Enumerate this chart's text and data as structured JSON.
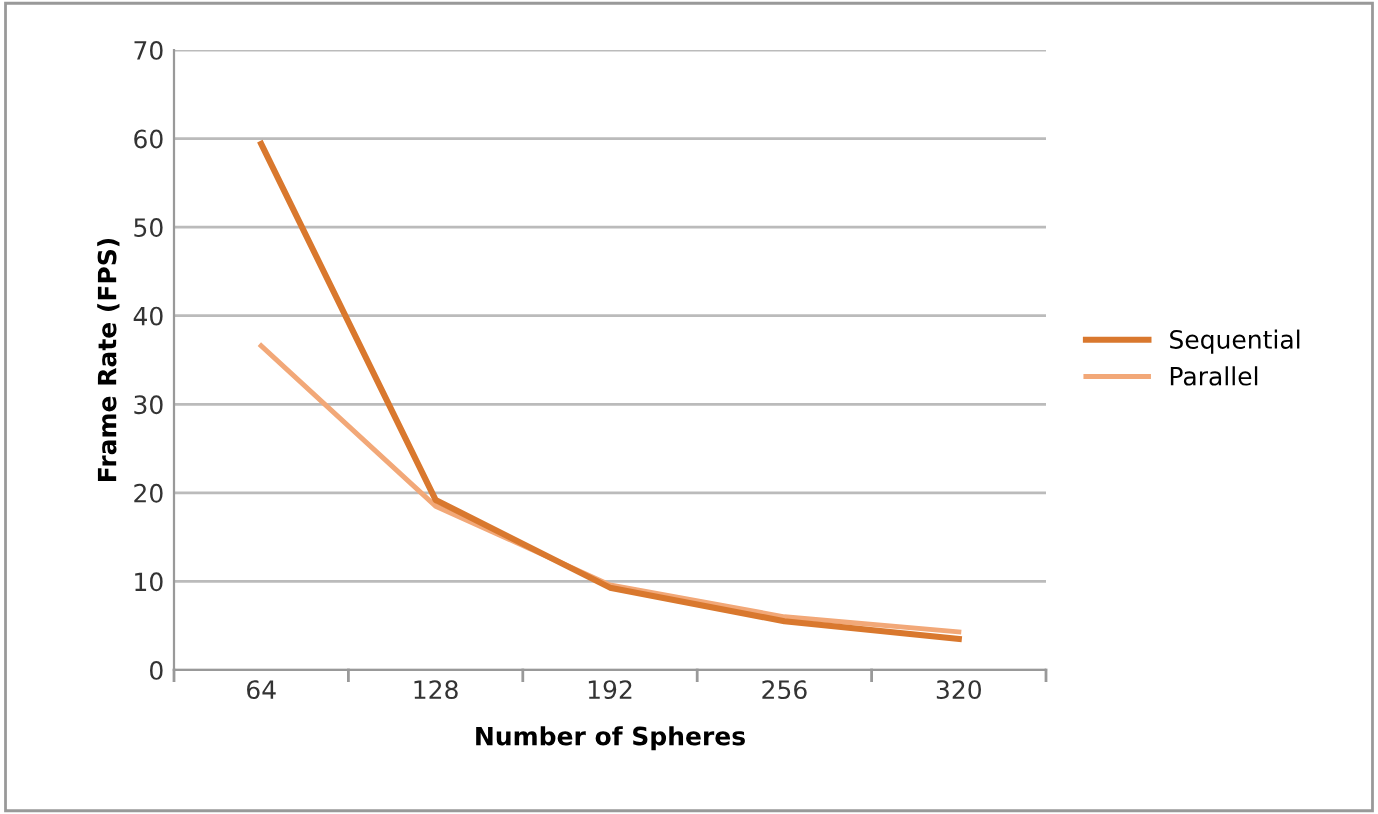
{
  "chart_data": {
    "type": "line",
    "xlabel": "Number of Spheres",
    "ylabel": "Frame Rate (FPS)",
    "categories": [
      "64",
      "128",
      "192",
      "256",
      "320"
    ],
    "series": [
      {
        "name": "Sequential",
        "color": "#d9782e",
        "values": [
          59.4,
          19.2,
          9.3,
          5.5,
          3.5
        ]
      },
      {
        "name": "Parallel",
        "color": "#f2a878",
        "values": [
          36.6,
          18.5,
          9.6,
          6.0,
          4.3
        ]
      }
    ],
    "ylim": [
      0,
      70
    ],
    "yticks": [
      0,
      10,
      20,
      30,
      40,
      50,
      60,
      70
    ],
    "grid": "y",
    "legend": "right",
    "marker": "none",
    "line_style": "solid"
  }
}
